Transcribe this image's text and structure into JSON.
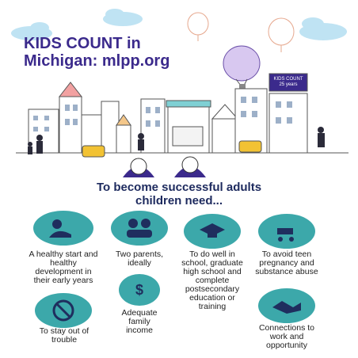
{
  "header": {
    "title_lines": [
      "KIDS COUNT in",
      "Michigan: mlpp.org"
    ]
  },
  "billboard": {
    "lines": [
      "KIDS COUNT",
      "25 years"
    ]
  },
  "heading": {
    "lines": [
      "To become successful adults",
      "children need..."
    ]
  },
  "needs": [
    {
      "label": "A healthy start and healthy development in their early years"
    },
    {
      "label": "Two parents, ideally"
    },
    {
      "label": "To do well in school, graduate high school and complete postsecondary education or training"
    },
    {
      "label": "To avoid teen pregnancy and substance abuse"
    },
    {
      "label": "Adequate family income"
    },
    {
      "label": "To stay out of trouble"
    },
    {
      "label": "Connections to work and opportunity"
    }
  ]
}
